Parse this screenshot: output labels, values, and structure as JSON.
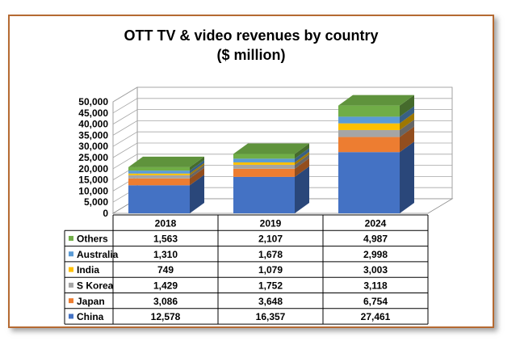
{
  "chart_data": {
    "type": "bar",
    "stacked": true,
    "title_line1": "OTT TV & video revenues by country",
    "title_line2": "($ million)",
    "categories": [
      "2018",
      "2019",
      "2024"
    ],
    "y_ticks": [
      "0",
      "5,000",
      "10,000",
      "15,000",
      "20,000",
      "25,000",
      "30,000",
      "35,000",
      "40,000",
      "45,000",
      "50,000"
    ],
    "ylim": [
      0,
      50000
    ],
    "legend_position": "data table",
    "series": [
      {
        "name": "China",
        "color": "#4472c4",
        "values": [
          12578,
          16357,
          27461
        ],
        "labels": [
          "12,578",
          "16,357",
          "27,461"
        ]
      },
      {
        "name": "Japan",
        "color": "#ed7d31",
        "values": [
          3086,
          3648,
          6754
        ],
        "labels": [
          "3,086",
          "3,648",
          "6,754"
        ]
      },
      {
        "name": "S Korea",
        "color": "#a5a5a5",
        "values": [
          1429,
          1752,
          3118
        ],
        "labels": [
          "1,429",
          "1,752",
          "3,118"
        ]
      },
      {
        "name": "India",
        "color": "#ffc000",
        "values": [
          749,
          1079,
          3003
        ],
        "labels": [
          "749",
          "1,079",
          "3,003"
        ]
      },
      {
        "name": "Australia",
        "color": "#5b9bd5",
        "values": [
          1310,
          1678,
          2998
        ],
        "labels": [
          "1,310",
          "1,678",
          "2,998"
        ]
      },
      {
        "name": "Others",
        "color": "#70ad47",
        "values": [
          1563,
          2107,
          4987
        ],
        "labels": [
          "1,563",
          "2,107",
          "4,987"
        ]
      }
    ]
  }
}
